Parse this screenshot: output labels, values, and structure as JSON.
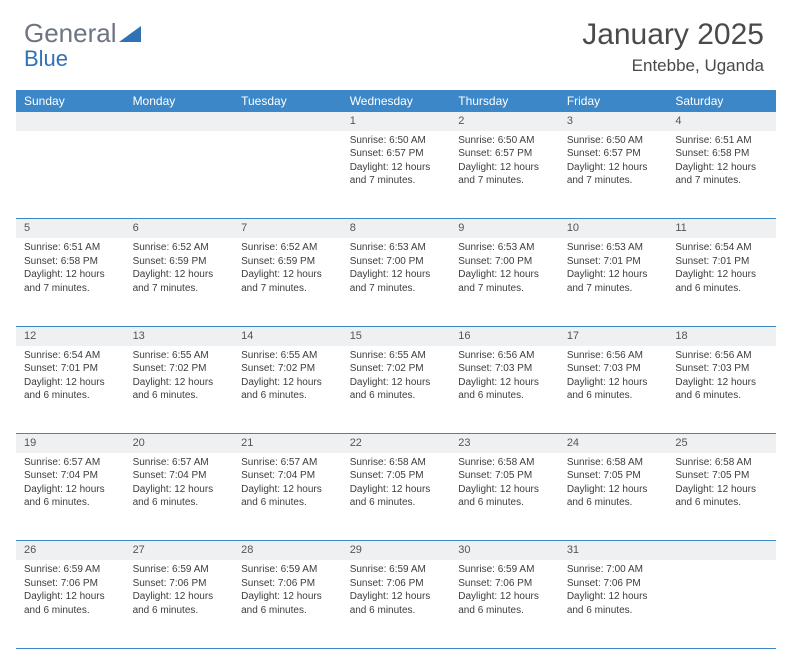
{
  "brand": {
    "part1": "General",
    "part2": "Blue",
    "triangle_color": "#2f72b6"
  },
  "title": "January 2025",
  "location": "Entebbe, Uganda",
  "colors": {
    "header_bg": "#3b87c8",
    "header_fg": "#ffffff",
    "daynum_bg": "#eef0f2",
    "rule": "#3b87c8",
    "text": "#3d3d3d",
    "title": "#4a4a4a",
    "logo_gray": "#6c7580"
  },
  "day_headers": [
    "Sunday",
    "Monday",
    "Tuesday",
    "Wednesday",
    "Thursday",
    "Friday",
    "Saturday"
  ],
  "weeks": [
    [
      null,
      null,
      null,
      {
        "n": "1",
        "sr": "6:50 AM",
        "ss": "6:57 PM",
        "dl": "12 hours and 7 minutes."
      },
      {
        "n": "2",
        "sr": "6:50 AM",
        "ss": "6:57 PM",
        "dl": "12 hours and 7 minutes."
      },
      {
        "n": "3",
        "sr": "6:50 AM",
        "ss": "6:57 PM",
        "dl": "12 hours and 7 minutes."
      },
      {
        "n": "4",
        "sr": "6:51 AM",
        "ss": "6:58 PM",
        "dl": "12 hours and 7 minutes."
      }
    ],
    [
      {
        "n": "5",
        "sr": "6:51 AM",
        "ss": "6:58 PM",
        "dl": "12 hours and 7 minutes."
      },
      {
        "n": "6",
        "sr": "6:52 AM",
        "ss": "6:59 PM",
        "dl": "12 hours and 7 minutes."
      },
      {
        "n": "7",
        "sr": "6:52 AM",
        "ss": "6:59 PM",
        "dl": "12 hours and 7 minutes."
      },
      {
        "n": "8",
        "sr": "6:53 AM",
        "ss": "7:00 PM",
        "dl": "12 hours and 7 minutes."
      },
      {
        "n": "9",
        "sr": "6:53 AM",
        "ss": "7:00 PM",
        "dl": "12 hours and 7 minutes."
      },
      {
        "n": "10",
        "sr": "6:53 AM",
        "ss": "7:01 PM",
        "dl": "12 hours and 7 minutes."
      },
      {
        "n": "11",
        "sr": "6:54 AM",
        "ss": "7:01 PM",
        "dl": "12 hours and 6 minutes."
      }
    ],
    [
      {
        "n": "12",
        "sr": "6:54 AM",
        "ss": "7:01 PM",
        "dl": "12 hours and 6 minutes."
      },
      {
        "n": "13",
        "sr": "6:55 AM",
        "ss": "7:02 PM",
        "dl": "12 hours and 6 minutes."
      },
      {
        "n": "14",
        "sr": "6:55 AM",
        "ss": "7:02 PM",
        "dl": "12 hours and 6 minutes."
      },
      {
        "n": "15",
        "sr": "6:55 AM",
        "ss": "7:02 PM",
        "dl": "12 hours and 6 minutes."
      },
      {
        "n": "16",
        "sr": "6:56 AM",
        "ss": "7:03 PM",
        "dl": "12 hours and 6 minutes."
      },
      {
        "n": "17",
        "sr": "6:56 AM",
        "ss": "7:03 PM",
        "dl": "12 hours and 6 minutes."
      },
      {
        "n": "18",
        "sr": "6:56 AM",
        "ss": "7:03 PM",
        "dl": "12 hours and 6 minutes."
      }
    ],
    [
      {
        "n": "19",
        "sr": "6:57 AM",
        "ss": "7:04 PM",
        "dl": "12 hours and 6 minutes."
      },
      {
        "n": "20",
        "sr": "6:57 AM",
        "ss": "7:04 PM",
        "dl": "12 hours and 6 minutes."
      },
      {
        "n": "21",
        "sr": "6:57 AM",
        "ss": "7:04 PM",
        "dl": "12 hours and 6 minutes."
      },
      {
        "n": "22",
        "sr": "6:58 AM",
        "ss": "7:05 PM",
        "dl": "12 hours and 6 minutes."
      },
      {
        "n": "23",
        "sr": "6:58 AM",
        "ss": "7:05 PM",
        "dl": "12 hours and 6 minutes."
      },
      {
        "n": "24",
        "sr": "6:58 AM",
        "ss": "7:05 PM",
        "dl": "12 hours and 6 minutes."
      },
      {
        "n": "25",
        "sr": "6:58 AM",
        "ss": "7:05 PM",
        "dl": "12 hours and 6 minutes."
      }
    ],
    [
      {
        "n": "26",
        "sr": "6:59 AM",
        "ss": "7:06 PM",
        "dl": "12 hours and 6 minutes."
      },
      {
        "n": "27",
        "sr": "6:59 AM",
        "ss": "7:06 PM",
        "dl": "12 hours and 6 minutes."
      },
      {
        "n": "28",
        "sr": "6:59 AM",
        "ss": "7:06 PM",
        "dl": "12 hours and 6 minutes."
      },
      {
        "n": "29",
        "sr": "6:59 AM",
        "ss": "7:06 PM",
        "dl": "12 hours and 6 minutes."
      },
      {
        "n": "30",
        "sr": "6:59 AM",
        "ss": "7:06 PM",
        "dl": "12 hours and 6 minutes."
      },
      {
        "n": "31",
        "sr": "7:00 AM",
        "ss": "7:06 PM",
        "dl": "12 hours and 6 minutes."
      },
      null
    ]
  ],
  "labels": {
    "sunrise": "Sunrise:",
    "sunset": "Sunset:",
    "daylight": "Daylight:"
  }
}
